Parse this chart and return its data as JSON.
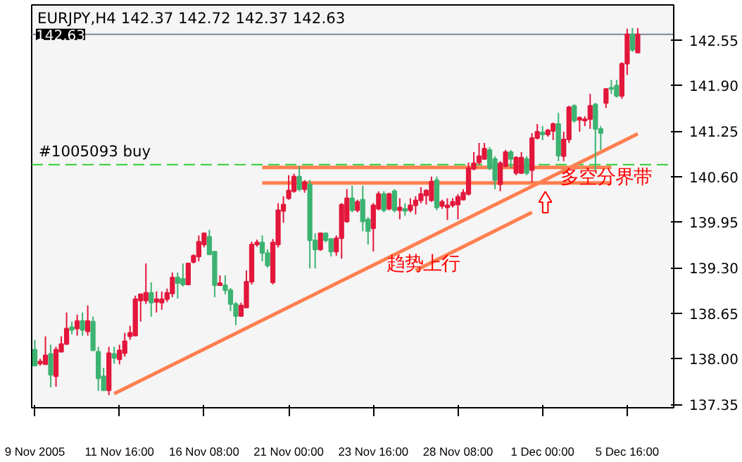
{
  "chart_data": {
    "type": "candlestick",
    "title": "EURJPY,H4  142.37 142.72 142.37 142.63",
    "categories": [
      "9 Nov 2005",
      null,
      null,
      null,
      null,
      null,
      null,
      null,
      null,
      null,
      null,
      null,
      null,
      null,
      null,
      null,
      "11 Nov 16:00",
      null,
      null,
      null,
      null,
      null,
      null,
      null,
      null,
      null,
      null,
      null,
      null,
      null,
      null,
      null,
      "16 Nov 08:00",
      null,
      null,
      null,
      null,
      null,
      null,
      null,
      null,
      null,
      null,
      null,
      null,
      null,
      null,
      null,
      "21 Nov 00:00",
      null,
      null,
      null,
      null,
      null,
      null,
      null,
      null,
      null,
      null,
      null,
      null,
      null,
      null,
      null,
      "23 Nov 16:00",
      null,
      null,
      null,
      null,
      null,
      null,
      null,
      null,
      null,
      null,
      null,
      null,
      null,
      null,
      null,
      "28 Nov 08:00",
      null,
      null,
      null,
      null,
      null,
      null,
      null,
      null,
      null,
      null,
      null,
      null,
      null,
      null,
      null,
      "1 Dec 00:00",
      null,
      null,
      null,
      null,
      null,
      null,
      null,
      null,
      null,
      null,
      null,
      null,
      null,
      null,
      null,
      "5 Dec 16:00",
      null,
      null
    ],
    "ohlc": [
      [
        138.13,
        138.27,
        137.9,
        137.9
      ],
      [
        137.93,
        138.0,
        137.9,
        137.96
      ],
      [
        137.92,
        138.32,
        137.92,
        138.05
      ],
      [
        138.07,
        138.2,
        137.59,
        137.77
      ],
      [
        137.75,
        138.17,
        137.6,
        138.13
      ],
      [
        138.1,
        138.32,
        138.1,
        138.21
      ],
      [
        138.21,
        138.66,
        138.2,
        138.43
      ],
      [
        138.45,
        138.53,
        138.35,
        138.41
      ],
      [
        138.43,
        138.63,
        138.33,
        138.54
      ],
      [
        138.54,
        138.66,
        138.33,
        138.41
      ],
      [
        138.39,
        138.76,
        138.33,
        138.54
      ],
      [
        138.53,
        138.6,
        138.12,
        138.12
      ],
      [
        138.1,
        138.17,
        137.54,
        137.72
      ],
      [
        137.75,
        137.87,
        137.55,
        137.55
      ],
      [
        137.55,
        138.17,
        137.48,
        138.08
      ],
      [
        138.07,
        138.17,
        137.93,
        138.01
      ],
      [
        137.99,
        138.2,
        137.92,
        138.12
      ],
      [
        138.08,
        138.37,
        138.03,
        138.25
      ],
      [
        138.32,
        138.47,
        138.27,
        138.37
      ],
      [
        138.33,
        138.9,
        138.32,
        138.85
      ],
      [
        138.83,
        138.92,
        138.53,
        138.92
      ],
      [
        138.83,
        139.36,
        138.78,
        138.94
      ],
      [
        138.94,
        139.09,
        138.6,
        138.8
      ],
      [
        138.81,
        138.96,
        138.66,
        138.85
      ],
      [
        138.8,
        138.96,
        138.7,
        138.85
      ],
      [
        138.85,
        139.0,
        138.81,
        138.94
      ],
      [
        138.93,
        139.23,
        138.88,
        139.16
      ],
      [
        139.16,
        139.23,
        138.86,
        139.08
      ],
      [
        139.14,
        139.36,
        139.03,
        139.06
      ],
      [
        139.06,
        139.36,
        139.06,
        139.36
      ],
      [
        139.38,
        139.49,
        139.36,
        139.47
      ],
      [
        139.46,
        139.76,
        139.39,
        139.67
      ],
      [
        139.63,
        139.8,
        139.59,
        139.79
      ],
      [
        139.74,
        139.84,
        139.49,
        139.49
      ],
      [
        139.53,
        139.53,
        138.88,
        139.05
      ],
      [
        139.05,
        139.19,
        139.05,
        139.08
      ],
      [
        139.05,
        139.19,
        138.92,
        138.98
      ],
      [
        138.98,
        139.01,
        138.68,
        138.78
      ],
      [
        138.78,
        138.81,
        138.48,
        138.61
      ],
      [
        138.61,
        138.8,
        138.6,
        138.76
      ],
      [
        138.73,
        139.26,
        138.73,
        139.1
      ],
      [
        139.1,
        139.67,
        139.06,
        139.63
      ],
      [
        139.63,
        139.7,
        139.6,
        139.66
      ],
      [
        139.66,
        139.76,
        139.39,
        139.51
      ],
      [
        139.51,
        139.56,
        139.3,
        139.33
      ],
      [
        139.09,
        139.71,
        139.06,
        139.66
      ],
      [
        139.63,
        140.22,
        139.59,
        140.12
      ],
      [
        140.11,
        140.32,
        139.94,
        140.2
      ],
      [
        140.29,
        140.62,
        140.27,
        140.4
      ],
      [
        140.39,
        140.64,
        140.37,
        140.6
      ],
      [
        140.6,
        140.75,
        140.39,
        140.42
      ],
      [
        140.42,
        140.55,
        140.37,
        140.52
      ],
      [
        140.49,
        140.55,
        139.29,
        139.69
      ],
      [
        139.69,
        139.79,
        139.29,
        139.56
      ],
      [
        139.56,
        139.8,
        139.54,
        139.79
      ],
      [
        139.79,
        139.8,
        139.66,
        139.69
      ],
      [
        139.71,
        139.72,
        139.46,
        139.53
      ],
      [
        139.53,
        139.76,
        139.47,
        139.72
      ],
      [
        139.72,
        140.22,
        139.43,
        140.2
      ],
      [
        139.96,
        140.42,
        139.94,
        140.29
      ],
      [
        140.29,
        140.47,
        140.09,
        140.12
      ],
      [
        140.12,
        140.27,
        140.09,
        140.24
      ],
      [
        140.27,
        140.47,
        139.82,
        139.96
      ],
      [
        139.99,
        140.02,
        139.63,
        139.82
      ],
      [
        139.86,
        140.22,
        139.53,
        140.19
      ],
      [
        140.14,
        140.39,
        140.12,
        140.35
      ],
      [
        140.35,
        140.39,
        140.09,
        140.12
      ],
      [
        140.14,
        140.37,
        140.12,
        140.35
      ],
      [
        140.39,
        140.42,
        140.09,
        140.12
      ],
      [
        140.12,
        140.29,
        139.99,
        140.16
      ],
      [
        140.14,
        140.22,
        140.04,
        140.11
      ],
      [
        140.12,
        140.29,
        140.09,
        140.19
      ],
      [
        140.19,
        140.32,
        140.06,
        140.26
      ],
      [
        140.26,
        140.45,
        140.22,
        140.35
      ],
      [
        140.33,
        140.42,
        140.2,
        140.4
      ],
      [
        140.26,
        140.6,
        140.24,
        140.53
      ],
      [
        140.55,
        140.6,
        140.12,
        140.16
      ],
      [
        140.18,
        140.27,
        140.14,
        140.24
      ],
      [
        140.16,
        140.29,
        139.98,
        140.19
      ],
      [
        140.19,
        140.29,
        140.16,
        140.24
      ],
      [
        140.2,
        140.35,
        139.99,
        140.31
      ],
      [
        140.27,
        140.42,
        140.26,
        140.37
      ],
      [
        140.35,
        140.8,
        140.33,
        140.72
      ],
      [
        140.71,
        140.95,
        140.69,
        140.79
      ],
      [
        140.8,
        141.08,
        140.77,
        140.89
      ],
      [
        140.85,
        141.08,
        140.84,
        141.0
      ],
      [
        140.98,
        141.02,
        140.69,
        140.72
      ],
      [
        140.85,
        140.89,
        140.42,
        140.55
      ],
      [
        140.49,
        140.82,
        140.39,
        140.79
      ],
      [
        140.75,
        140.98,
        140.73,
        140.95
      ],
      [
        140.95,
        140.98,
        140.72,
        140.85
      ],
      [
        140.65,
        140.89,
        140.62,
        140.87
      ],
      [
        140.65,
        140.95,
        140.64,
        140.87
      ],
      [
        140.85,
        140.89,
        140.62,
        140.65
      ],
      [
        140.69,
        141.22,
        140.52,
        141.15
      ],
      [
        141.15,
        141.35,
        141.13,
        141.24
      ],
      [
        141.23,
        141.32,
        141.12,
        141.2
      ],
      [
        141.2,
        141.28,
        141.17,
        141.26
      ],
      [
        141.25,
        141.37,
        141.12,
        141.35
      ],
      [
        141.35,
        141.51,
        140.82,
        140.9
      ],
      [
        140.89,
        141.24,
        140.82,
        141.13
      ],
      [
        141.13,
        141.61,
        141.08,
        141.59
      ],
      [
        141.61,
        141.63,
        141.37,
        141.4
      ],
      [
        141.41,
        141.46,
        141.24,
        141.44
      ],
      [
        141.4,
        141.46,
        141.32,
        141.42
      ],
      [
        141.42,
        141.78,
        141.28,
        141.61
      ],
      [
        141.63,
        141.65,
        140.69,
        141.28
      ],
      [
        141.28,
        141.32,
        140.98,
        141.22
      ],
      [
        141.65,
        141.86,
        141.58,
        141.85
      ],
      [
        141.87,
        141.98,
        141.78,
        141.85
      ],
      [
        141.9,
        141.98,
        141.73,
        141.75
      ],
      [
        141.75,
        142.23,
        141.71,
        142.21
      ],
      [
        142.21,
        142.71,
        142.05,
        142.63
      ],
      [
        142.63,
        142.72,
        142.38,
        142.41
      ],
      [
        142.37,
        142.72,
        142.37,
        142.63
      ]
    ],
    "colors": [
      "#3cb371",
      "#e3173b",
      "#e3173b",
      "#3cb371",
      "#e3173b",
      "#e3173b",
      "#e3173b",
      "#3cb371",
      "#e3173b",
      "#3cb371",
      "#e3173b",
      "#3cb371",
      "#3cb371",
      "#3cb371",
      "#e3173b",
      "#3cb371",
      "#e3173b",
      "#e3173b",
      "#e3173b",
      "#e3173b",
      "#e3173b",
      "#e3173b",
      "#3cb371",
      "#e3173b",
      "#e3173b",
      "#e3173b",
      "#e3173b",
      "#3cb371",
      "#3cb371",
      "#e3173b",
      "#e3173b",
      "#e3173b",
      "#e3173b",
      "#3cb371",
      "#3cb371",
      "#e3173b",
      "#3cb371",
      "#3cb371",
      "#3cb371",
      "#e3173b",
      "#e3173b",
      "#e3173b",
      "#e3173b",
      "#3cb371",
      "#3cb371",
      "#e3173b",
      "#e3173b",
      "#e3173b",
      "#e3173b",
      "#e3173b",
      "#3cb371",
      "#e3173b",
      "#3cb371",
      "#3cb371",
      "#e3173b",
      "#3cb371",
      "#3cb371",
      "#e3173b",
      "#e3173b",
      "#e3173b",
      "#3cb371",
      "#e3173b",
      "#3cb371",
      "#3cb371",
      "#e3173b",
      "#e3173b",
      "#3cb371",
      "#e3173b",
      "#3cb371",
      "#e3173b",
      "#3cb371",
      "#e3173b",
      "#e3173b",
      "#e3173b",
      "#e3173b",
      "#e3173b",
      "#3cb371",
      "#e3173b",
      "#e3173b",
      "#e3173b",
      "#e3173b",
      "#e3173b",
      "#e3173b",
      "#e3173b",
      "#e3173b",
      "#e3173b",
      "#3cb371",
      "#3cb371",
      "#e3173b",
      "#e3173b",
      "#3cb371",
      "#e3173b",
      "#e3173b",
      "#3cb371",
      "#e3173b",
      "#e3173b",
      "#3cb371",
      "#e3173b",
      "#e3173b",
      "#3cb371",
      "#e3173b",
      "#e3173b",
      "#3cb371",
      "#e3173b",
      "#e3173b",
      "#e3173b",
      "#3cb371",
      "#3cb371",
      "#e3173b",
      "#3cb371",
      "#3cb371",
      "#e3173b",
      "#e3173b",
      "#3cb371",
      "#e3173b"
    ],
    "series": [
      {
        "type": "line",
        "color": "#ff7f50",
        "values": [
          null,
          null,
          null,
          null,
          null,
          null,
          null,
          null,
          null,
          null,
          null,
          null,
          null,
          null,
          null,
          137.5,
          null,
          null,
          null,
          null,
          null,
          null,
          null,
          null,
          null,
          null,
          null,
          null,
          null,
          null,
          null,
          null,
          null,
          null,
          null,
          null,
          null,
          null,
          null,
          null,
          null,
          null,
          null,
          null,
          null,
          null,
          null,
          null,
          null,
          null,
          null,
          null,
          null,
          null,
          null,
          null,
          null,
          null,
          null,
          null,
          null,
          null,
          null,
          null,
          null,
          null,
          null,
          null,
          null,
          null,
          null,
          null,
          null,
          null,
          null,
          null,
          null,
          null,
          null,
          null,
          null,
          null,
          null,
          null,
          null,
          null,
          null,
          null,
          null,
          null,
          null,
          null,
          null,
          null,
          null,
          null,
          null,
          null,
          null,
          null,
          null,
          null,
          null,
          null,
          null,
          null,
          null,
          null,
          null,
          null,
          null,
          null,
          null,
          null,
          141.21
        ]
      },
      {
        "type": "line",
        "color": "#ff7f50",
        "values": [
          null,
          null,
          null,
          null,
          null,
          null,
          null,
          null,
          null,
          null,
          null,
          null,
          null,
          null,
          null,
          null,
          null,
          null,
          null,
          null,
          null,
          null,
          null,
          null,
          null,
          null,
          null,
          null,
          null,
          null,
          null,
          null,
          null,
          null,
          null,
          null,
          null,
          null,
          null,
          null,
          null,
          null,
          null,
          140.73,
          null,
          null,
          null,
          null,
          null,
          null,
          null,
          null,
          null,
          null,
          null,
          null,
          null,
          null,
          null,
          null,
          null,
          null,
          null,
          null,
          null,
          null,
          null,
          null,
          null,
          null,
          null,
          null,
          null,
          null,
          null,
          null,
          null,
          null,
          null,
          null,
          null,
          null,
          null,
          null,
          null,
          null,
          null,
          null,
          null,
          null,
          null,
          null,
          null,
          null,
          null,
          null,
          null,
          null,
          null,
          null,
          null,
          null,
          null,
          null,
          null,
          null,
          null,
          null,
          null,
          140.73,
          null,
          null,
          null,
          null,
          null
        ]
      },
      {
        "type": "line",
        "color": "#ff7f50",
        "values": [
          null,
          null,
          null,
          null,
          null,
          null,
          null,
          null,
          null,
          null,
          null,
          null,
          null,
          null,
          null,
          null,
          null,
          null,
          null,
          null,
          null,
          null,
          null,
          null,
          null,
          null,
          null,
          null,
          null,
          null,
          null,
          null,
          null,
          null,
          null,
          null,
          null,
          null,
          null,
          null,
          null,
          null,
          null,
          140.51,
          null,
          null,
          null,
          null,
          null,
          null,
          null,
          null,
          null,
          null,
          null,
          null,
          null,
          null,
          null,
          null,
          null,
          null,
          null,
          null,
          null,
          null,
          null,
          null,
          null,
          null,
          null,
          null,
          null,
          null,
          null,
          null,
          null,
          null,
          null,
          null,
          null,
          null,
          null,
          null,
          null,
          null,
          null,
          null,
          null,
          null,
          null,
          null,
          null,
          null,
          null,
          null,
          null,
          null,
          null,
          null,
          null,
          null,
          null,
          null,
          null,
          null,
          null,
          null,
          null,
          140.51,
          null,
          null,
          null,
          null,
          null
        ]
      },
      {
        "type": "line",
        "color": "#ff7f50",
        "values": [
          null,
          null,
          null,
          null,
          null,
          null,
          null,
          null,
          null,
          null,
          null,
          null,
          null,
          null,
          null,
          null,
          null,
          null,
          null,
          null,
          null,
          null,
          null,
          null,
          null,
          null,
          null,
          null,
          null,
          null,
          null,
          null,
          null,
          null,
          null,
          null,
          null,
          null,
          null,
          null,
          null,
          null,
          null,
          null,
          null,
          null,
          null,
          null,
          null,
          null,
          null,
          null,
          null,
          null,
          null,
          null,
          null,
          null,
          null,
          null,
          null,
          null,
          null,
          null,
          null,
          null,
          null,
          null,
          null,
          null,
          null,
          null,
          139.26,
          null,
          null,
          null,
          null,
          null,
          null,
          null,
          null,
          null,
          null,
          null,
          null,
          null,
          null,
          null,
          null,
          null,
          null,
          null,
          null,
          null,
          140.09,
          null,
          null,
          null,
          null,
          null,
          null,
          null,
          null,
          null,
          null,
          null,
          null,
          null,
          null,
          null,
          null,
          null,
          null,
          null,
          null
        ]
      }
    ],
    "ref_lines": [
      {
        "axis": "y",
        "value": 140.77,
        "label": "#1005093 buy",
        "color": "#32cd32",
        "line_style": "dashed"
      },
      {
        "axis": "y",
        "value": 142.63,
        "label": "142.63",
        "color": "#778899",
        "line_style": "solid"
      }
    ],
    "annotations": [
      "趋势上行",
      "多空分界带"
    ],
    "ylim": [
      137.3,
      143.05
    ],
    "yticks": [
      {
        "value": 137.35,
        "label": "137.35"
      },
      {
        "value": 138.0,
        "label": "138.00"
      },
      {
        "value": 138.65,
        "label": "138.65"
      },
      {
        "value": 139.3,
        "label": "139.30"
      },
      {
        "value": 139.95,
        "label": "139.95"
      },
      {
        "value": 140.6,
        "label": "140.60"
      },
      {
        "value": 141.25,
        "label": "141.25"
      },
      {
        "value": 141.9,
        "label": "141.90"
      },
      {
        "value": 142.55,
        "label": "142.55"
      }
    ]
  }
}
